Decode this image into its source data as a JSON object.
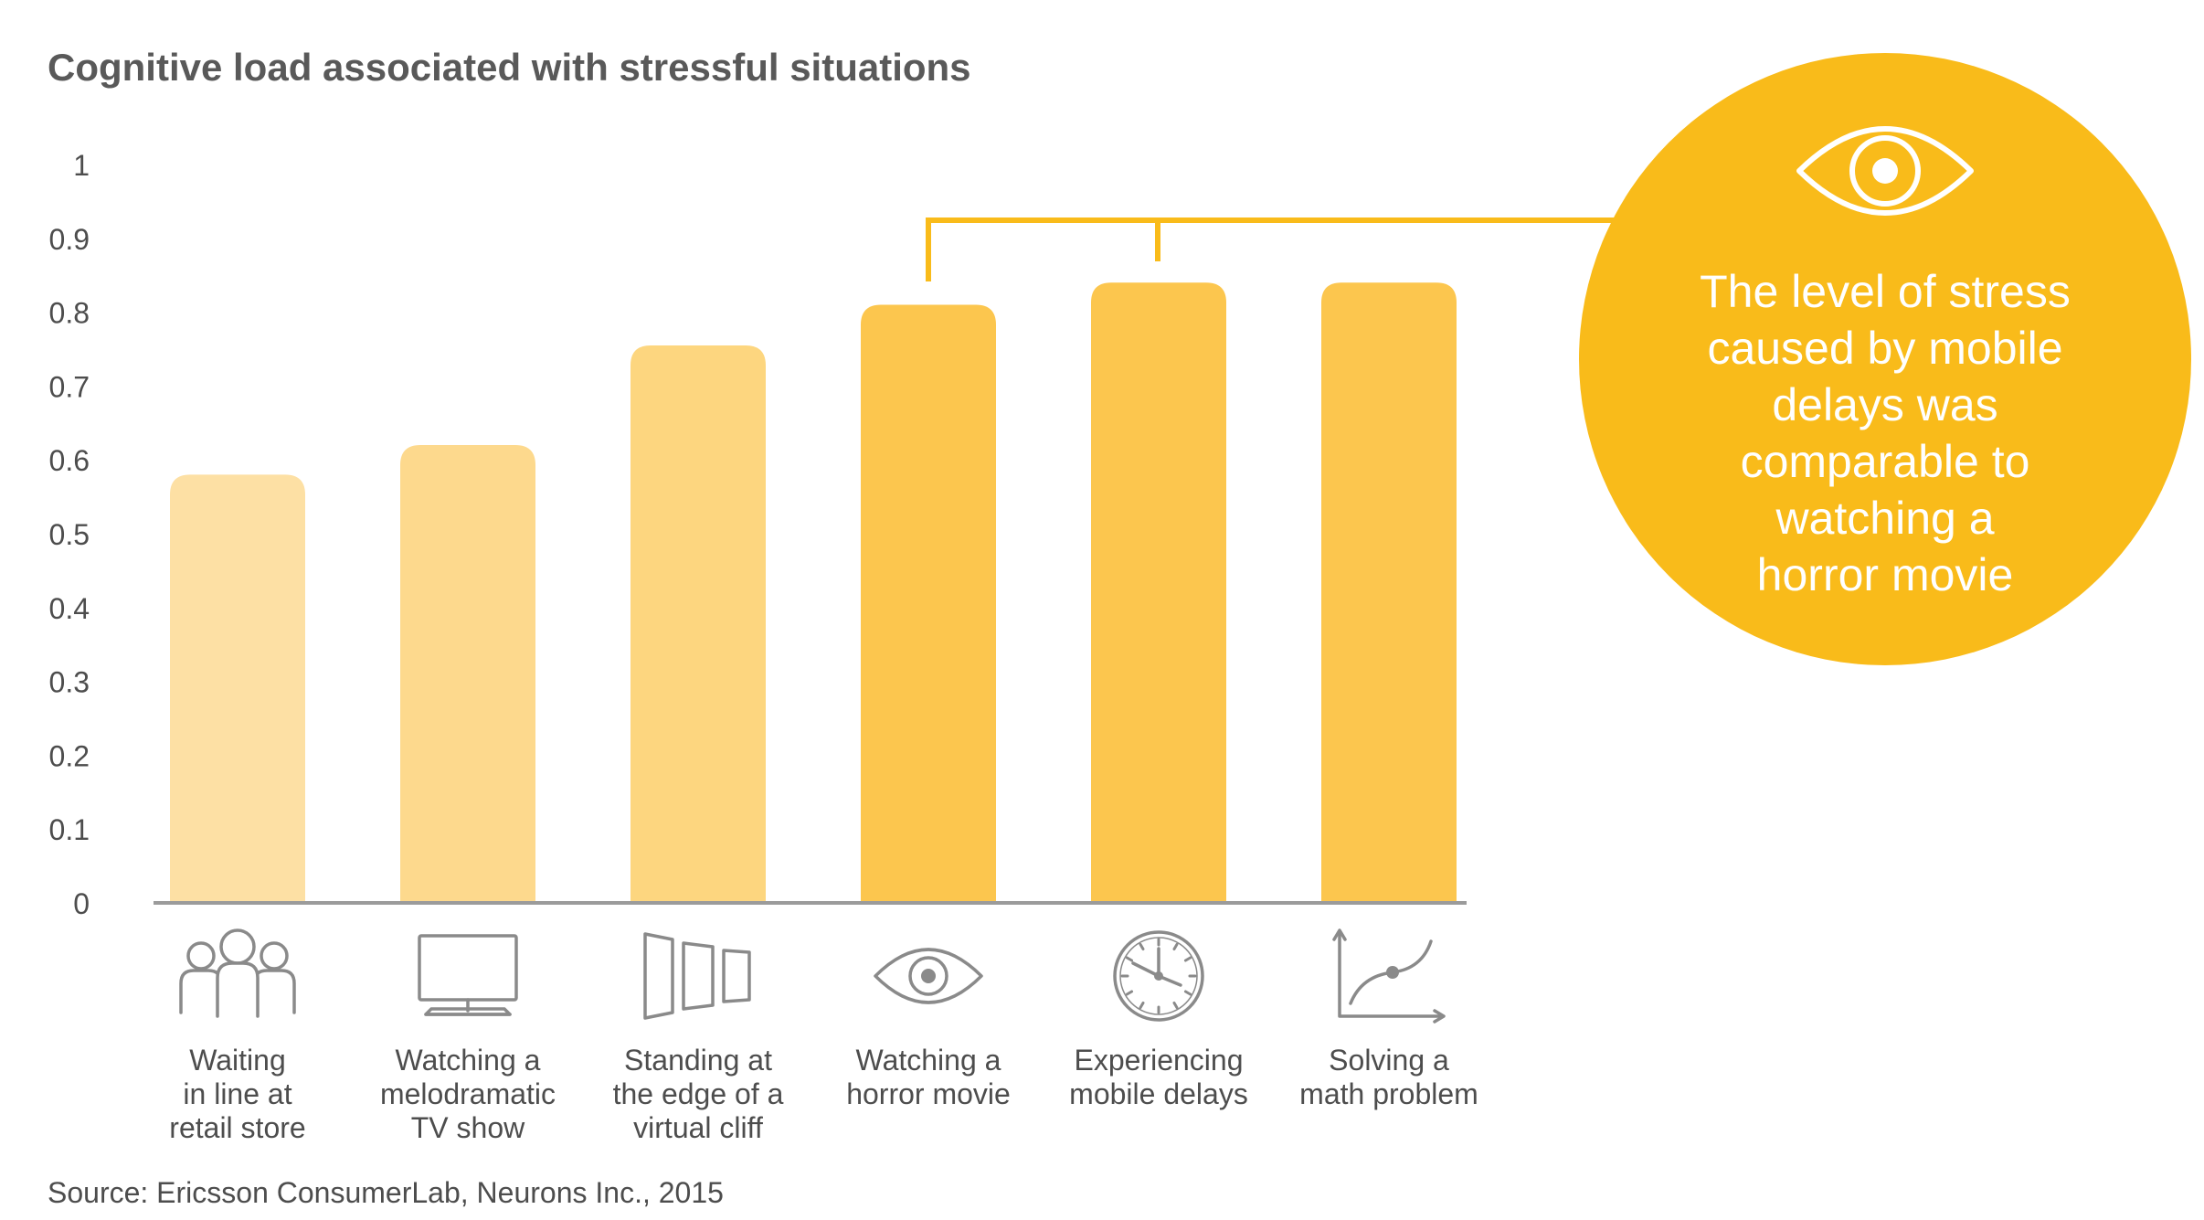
{
  "chart_data": {
    "type": "bar",
    "title": "Cognitive load associated with stressful situations",
    "categories": [
      [
        "Waiting",
        "in line at",
        "retail store"
      ],
      [
        "Watching a",
        "melodramatic",
        "TV show"
      ],
      [
        "Standing at",
        "the edge of a",
        "virtual cliff"
      ],
      [
        "Watching a",
        "horror movie"
      ],
      [
        "Experiencing",
        "mobile delays"
      ],
      [
        "Solving a",
        "math problem"
      ]
    ],
    "category_icons": [
      "people-group-icon",
      "tv-monitor-icon",
      "virtual-cliff-icon",
      "eye-icon",
      "clock-icon",
      "graph-curve-icon"
    ],
    "values": [
      0.58,
      0.62,
      0.755,
      0.81,
      0.84,
      0.84
    ],
    "ylim": [
      0,
      1
    ],
    "yticks": [
      "0",
      "0.1",
      "0.2",
      "0.3",
      "0.4",
      "0.5",
      "0.6",
      "0.7",
      "0.8",
      "0.9",
      "1"
    ],
    "xlabel": "",
    "ylabel": "",
    "grid": false,
    "legend": "none",
    "bar_colors": [
      "#FDE0A4",
      "#FDD98D",
      "#FDD67F",
      "#FCC64E",
      "#FCC64E",
      "#FCC64E"
    ],
    "callout": {
      "lines": [
        "The level of stress",
        "caused by mobile",
        "delays was",
        "comparable to",
        "watching a",
        "horror movie"
      ],
      "icon": "eye-icon",
      "color": "#F9BB1A",
      "text_color": "#ffffff",
      "bracket_links": [
        "Watching a horror movie",
        "Experiencing mobile delays"
      ]
    },
    "source": "Source: Ericsson ConsumerLab, Neurons Inc., 2015"
  },
  "colors": {
    "text": "#4d4d4d",
    "icon_stroke": "#8a8a8a",
    "axis": "#9b9b9b",
    "accent": "#F9BB1A"
  }
}
